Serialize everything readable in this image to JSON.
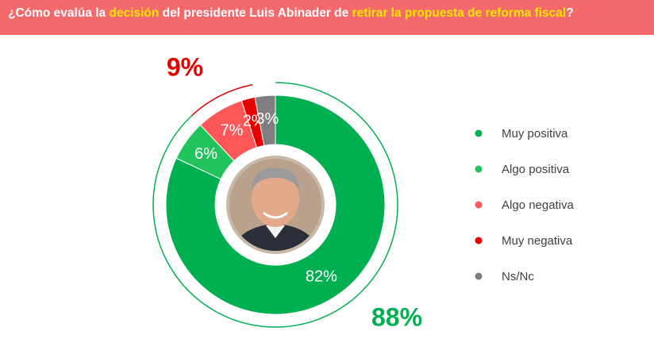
{
  "chart_data": {
    "type": "donut",
    "title": [
      {
        "text": "¿Cómo evalúa la ",
        "color": "#ffffff"
      },
      {
        "text": "decisión",
        "color": "#ffe600"
      },
      {
        "text": " del presidente Luis Abinader de ",
        "color": "#ffffff"
      },
      {
        "text": "retirar la propuesta de reforma fiscal",
        "color": "#ffe600"
      },
      {
        "text": "?",
        "color": "#ffffff"
      }
    ],
    "categories": [
      "Muy positiva",
      "Algo positiva",
      "Algo negativa",
      "Muy negativa",
      "Ns/Nc"
    ],
    "values": [
      82,
      6,
      7,
      2,
      3
    ],
    "value_labels": [
      "82%",
      "6%",
      "7%",
      "2%",
      "3%"
    ],
    "colors": [
      "#00b050",
      "#21c45c",
      "#ff5757",
      "#e60000",
      "#7f7f7f"
    ],
    "groups": [
      {
        "value": 88,
        "label": "88%",
        "color": "#00b050"
      },
      {
        "value": 9,
        "label": "9%",
        "color": "#e60000"
      }
    ]
  }
}
